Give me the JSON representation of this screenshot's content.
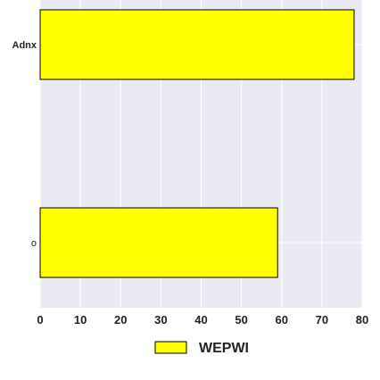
{
  "chart_data": {
    "type": "bar",
    "orientation": "horizontal",
    "categories": [
      "Adnx",
      "o"
    ],
    "series": [
      {
        "name": "WEPWI",
        "values": [
          78,
          59
        ],
        "color": "#ffff00"
      }
    ],
    "xlim": [
      0,
      80
    ],
    "xticks": [
      0,
      10,
      20,
      30,
      40,
      50,
      60,
      70,
      80
    ],
    "grid": true,
    "legend_position": "bottom-center",
    "background_color": "#eaeaf2",
    "xlabel": "",
    "ylabel": "",
    "title": ""
  }
}
